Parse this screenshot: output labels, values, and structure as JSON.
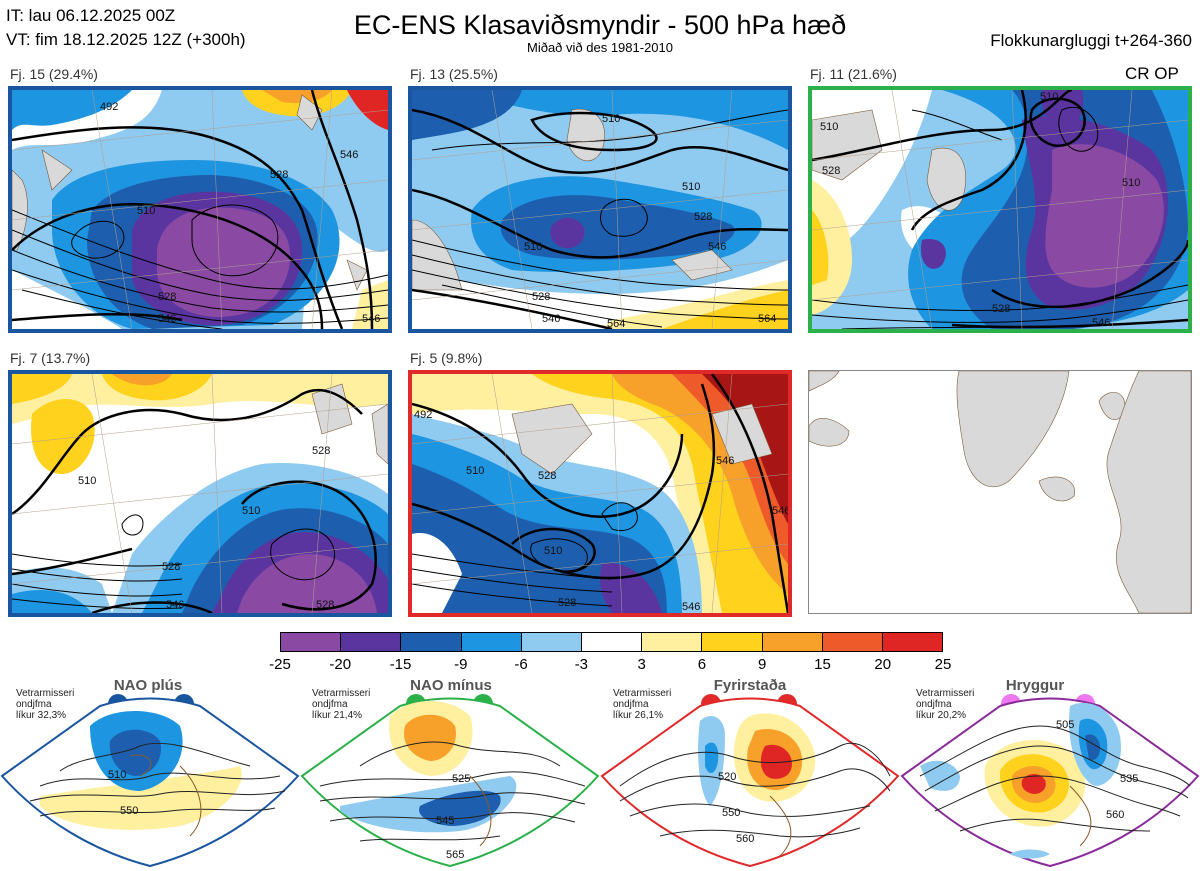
{
  "header": {
    "init_time": "IT: lau 06.12.2025 00Z",
    "valid_time": "VT: fim 18.12.2025 12Z  (+300h)",
    "title": "EC-ENS Klasaviðsmyndir - 500 hPa hæð",
    "subtitle": "Miðað við des 1981-2010",
    "window": "Flokkunargluggi t+264-360"
  },
  "op_tag": "CR OP",
  "clusters": [
    {
      "label": "Fj. 15 (29.4%)",
      "members": 15,
      "percent": 29.4,
      "regime": "NAO plús",
      "border_color": "#1a56a0"
    },
    {
      "label": "Fj. 13 (25.5%)",
      "members": 13,
      "percent": 25.5,
      "regime": "NAO plús",
      "border_color": "#1a56a0"
    },
    {
      "label": "Fj. 11 (21.6%)",
      "members": 11,
      "percent": 21.6,
      "regime": "NAO mínus",
      "border_color": "#2bb04a"
    },
    {
      "label": "Fj. 7 (13.7%)",
      "members": 7,
      "percent": 13.7,
      "regime": "NAO plús",
      "border_color": "#1a56a0"
    },
    {
      "label": "Fj. 5 (9.8%)",
      "members": 5,
      "percent": 9.8,
      "regime": "Fyrirstaða",
      "border_color": "#e02a2a"
    }
  ],
  "contour_labels": {
    "p1": [
      "492",
      "510",
      "528",
      "546",
      "528",
      "546",
      "546"
    ],
    "p2": [
      "510",
      "510",
      "510",
      "528",
      "546",
      "528",
      "546",
      "564",
      "564"
    ],
    "p3": [
      "510",
      "510",
      "528",
      "510",
      "528",
      "546"
    ],
    "p4": [
      "510",
      "528",
      "510",
      "528",
      "546",
      "528"
    ],
    "p5": [
      "492",
      "510",
      "528",
      "546",
      "510",
      "528",
      "546",
      "546"
    ]
  },
  "colorbar": {
    "ticks": [
      "-25",
      "-20",
      "-15",
      "-9",
      "-6",
      "-3",
      "3",
      "6",
      "9",
      "15",
      "20",
      "25"
    ],
    "colors": [
      "#8a4aa3",
      "#5a35a0",
      "#1d5fae",
      "#1d95e0",
      "#8fcaf0",
      "#ffffff",
      "#fff0a0",
      "#ffd21e",
      "#f7a12a",
      "#ef5a2a",
      "#e02525",
      "#a81515"
    ]
  },
  "regimes": [
    {
      "name": "NAO plús",
      "note": "Vetrarmisseri\nondjfma\nlíkur 32,3%",
      "color": "#1a56a0",
      "labels": [
        "510",
        "550"
      ]
    },
    {
      "name": "NAO mínus",
      "note": "Vetrarmisseri\nondjfma\nlíkur 21,4%",
      "color": "#2bb04a",
      "labels": [
        "525",
        "545",
        "565"
      ]
    },
    {
      "name": "Fyrirstaða",
      "note": "Vetrarmisseri\nondjfma\nlíkur 26,1%",
      "color": "#e02a2a",
      "labels": [
        "520",
        "550",
        "560"
      ]
    },
    {
      "name": "Hryggur",
      "note": "Vetrarmisseri\nondjfma\nlíkur 20,2%",
      "color": "#8a2b9a",
      "labels": [
        "505",
        "535",
        "560"
      ]
    }
  ],
  "chart_data": {
    "type": "heatmap",
    "title": "EC-ENS Klasaviðsmyndir - 500 hPa hæð",
    "subtitle": "Miðað við des 1981-2010",
    "colorbar_levels": [
      -25,
      -20,
      -15,
      -9,
      -6,
      -3,
      3,
      6,
      9,
      15,
      20,
      25
    ],
    "panels": [
      {
        "label": "Fj. 15 (29.4%)",
        "members": 15,
        "percent": 29.4,
        "contours": [
          492,
          510,
          528,
          546
        ]
      },
      {
        "label": "Fj. 13 (25.5%)",
        "members": 13,
        "percent": 25.5,
        "contours": [
          510,
          528,
          546,
          564
        ]
      },
      {
        "label": "Fj. 11 (21.6%)",
        "members": 11,
        "percent": 21.6,
        "contours": [
          510,
          528,
          546
        ]
      },
      {
        "label": "Fj. 7 (13.7%)",
        "members": 7,
        "percent": 13.7,
        "contours": [
          510,
          528,
          546
        ]
      },
      {
        "label": "Fj. 5 (9.8%)",
        "members": 5,
        "percent": 9.8,
        "contours": [
          492,
          510,
          528,
          546
        ]
      }
    ],
    "regimes": [
      {
        "name": "NAO plús",
        "probability_percent": 32.3
      },
      {
        "name": "NAO mínus",
        "probability_percent": 21.4
      },
      {
        "name": "Fyrirstaða",
        "probability_percent": 26.1
      },
      {
        "name": "Hryggur",
        "probability_percent": 20.2
      }
    ]
  }
}
